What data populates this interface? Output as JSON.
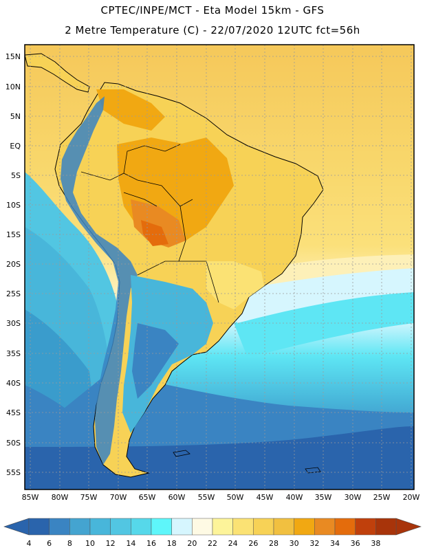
{
  "header": {
    "title_line1": "CPTEC/INPE/MCT -  Eta Model 15km - GFS",
    "title_line2": "2 Metre Temperature (C) - 22/07/2020 12UTC fct=56h"
  },
  "map": {
    "lat_labels": [
      "15N",
      "10N",
      "5N",
      "EQ",
      "5S",
      "10S",
      "15S",
      "20S",
      "25S",
      "30S",
      "35S",
      "40S",
      "45S",
      "50S",
      "55S"
    ],
    "lon_labels": [
      "85W",
      "80W",
      "75W",
      "70W",
      "65W",
      "60W",
      "55W",
      "50W",
      "45W",
      "40W",
      "35W",
      "30W",
      "25W",
      "20W"
    ]
  },
  "colorbar": {
    "labels": [
      "4",
      "6",
      "8",
      "10",
      "12",
      "14",
      "16",
      "18",
      "20",
      "22",
      "24",
      "26",
      "28",
      "30",
      "32",
      "34",
      "36",
      "38"
    ],
    "colors": [
      "#2a64ac",
      "#3a84c2",
      "#44a4d0",
      "#48b6da",
      "#52c6e2",
      "#56d8ea",
      "#5ef6fa",
      "#d6f6fe",
      "#fefae4",
      "#fdf49a",
      "#fbe274",
      "#f7d256",
      "#f1c040",
      "#f1a812",
      "#e98a22",
      "#e46c0c",
      "#c0400c",
      "#a8340a"
    ]
  }
}
